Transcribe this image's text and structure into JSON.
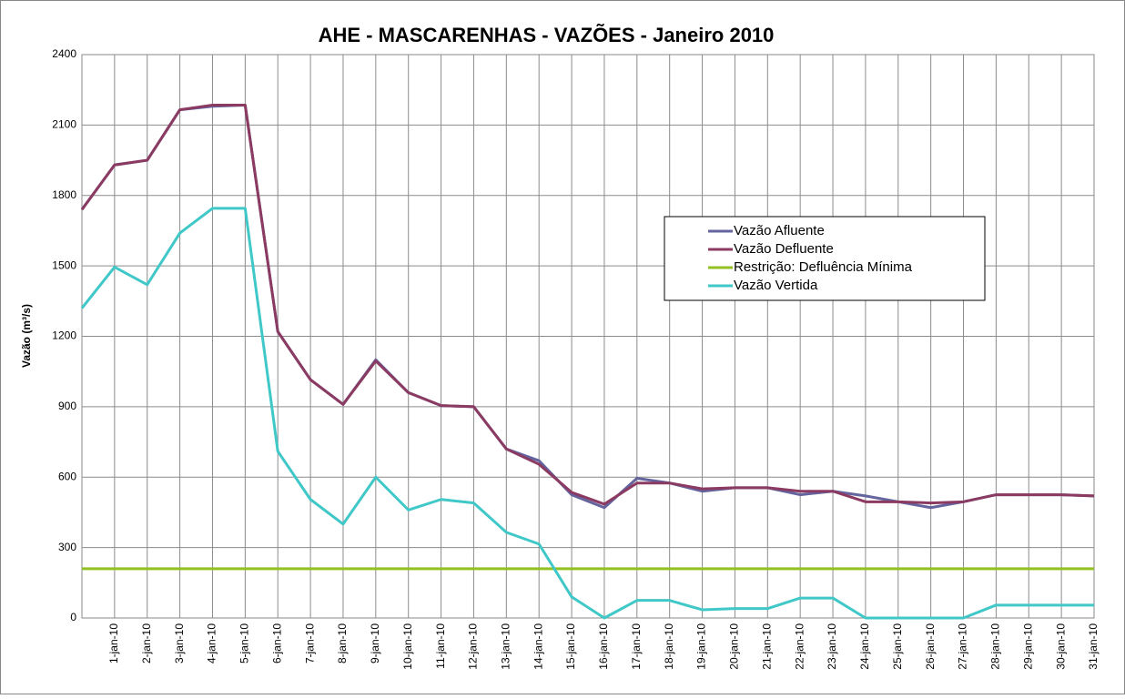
{
  "chart_data": {
    "type": "line",
    "title": "AHE - MASCARENHAS - VAZÕES -  Janeiro 2010",
    "y_label": "Vazão (m³/s)",
    "categories": [
      null,
      "1-jan-10",
      "2-jan-10",
      "3-jan-10",
      "4-jan-10",
      "5-jan-10",
      "6-jan-10",
      "7-jan-10",
      "8-jan-10",
      "9-jan-10",
      "10-jan-10",
      "11-jan-10",
      "12-jan-10",
      "13-jan-10",
      "14-jan-10",
      "15-jan-10",
      "16-jan-10",
      "17-jan-10",
      "18-jan-10",
      "19-jan-10",
      "20-jan-10",
      "21-jan-10",
      "22-jan-10",
      "23-jan-10",
      "24-jan-10",
      "25-jan-10",
      "26-jan-10",
      "27-jan-10",
      "28-jan-10",
      "29-jan-10",
      "30-jan-10",
      "31-jan-10"
    ],
    "series": [
      {
        "name": "Vazão Afluente",
        "color": "#64649e",
        "values": [
          1740,
          1930,
          1950,
          2165,
          2180,
          2185,
          1220,
          1015,
          910,
          1100,
          960,
          905,
          900,
          720,
          670,
          525,
          470,
          595,
          575,
          540,
          555,
          555,
          525,
          540,
          520,
          495,
          470,
          495,
          525,
          525,
          525,
          520
        ]
      },
      {
        "name": "Vazão Defluente",
        "color": "#8b3a62",
        "values": [
          1740,
          1930,
          1950,
          2165,
          2185,
          2185,
          1220,
          1015,
          910,
          1095,
          960,
          905,
          900,
          720,
          655,
          535,
          485,
          575,
          575,
          550,
          555,
          555,
          540,
          540,
          495,
          495,
          490,
          495,
          525,
          525,
          525,
          520
        ]
      },
      {
        "name": "Restrição: Defluência Mínima",
        "color": "#92c020",
        "values": [
          210,
          210,
          210,
          210,
          210,
          210,
          210,
          210,
          210,
          210,
          210,
          210,
          210,
          210,
          210,
          210,
          210,
          210,
          210,
          210,
          210,
          210,
          210,
          210,
          210,
          210,
          210,
          210,
          210,
          210,
          210,
          210
        ]
      },
      {
        "name": "Vazão Vertida",
        "color": "#40c8c8",
        "values": [
          1320,
          1495,
          1420,
          1640,
          1745,
          1745,
          710,
          505,
          400,
          600,
          460,
          505,
          490,
          365,
          315,
          90,
          0,
          75,
          75,
          35,
          40,
          40,
          85,
          85,
          0,
          0,
          0,
          0,
          55,
          55,
          55,
          55
        ]
      }
    ],
    "ylim": [
      0,
      2400
    ],
    "yticks": [
      0,
      300,
      600,
      900,
      1200,
      1500,
      1800,
      2100,
      2400
    ],
    "grid": true
  }
}
